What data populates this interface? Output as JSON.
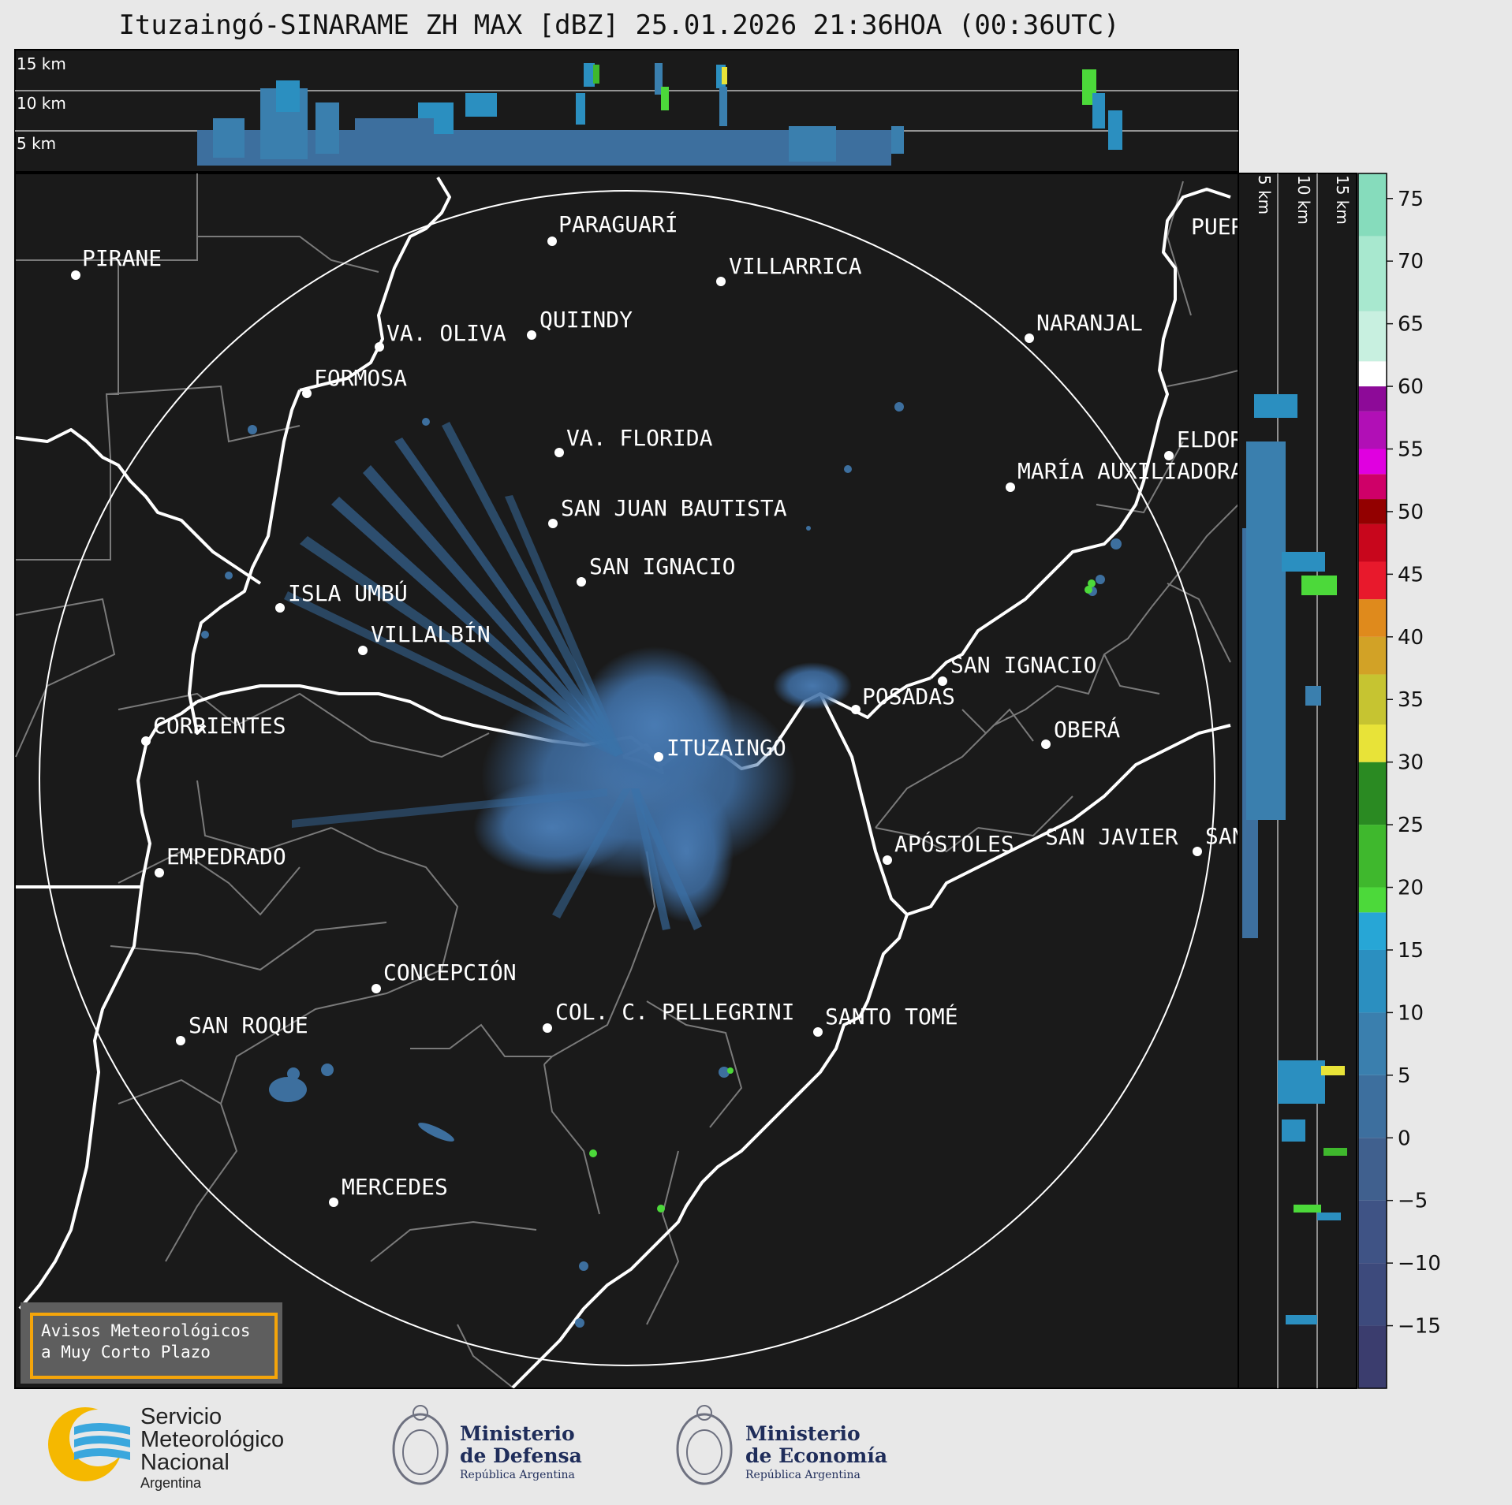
{
  "title": "Ituzaingó-SINARAME ZH MAX [dBZ] 25.01.2026 21:36HOA (00:36UTC)",
  "side_panel": {
    "height_labels": [
      "15 km",
      "10 km",
      "5 km"
    ]
  },
  "right_panel": {
    "height_labels": [
      "5 km",
      "10 km",
      "15 km"
    ]
  },
  "colorbar": {
    "unit": "dBZ",
    "ticks": [
      "75",
      "70",
      "65",
      "60",
      "55",
      "50",
      "45",
      "40",
      "35",
      "30",
      "25",
      "20",
      "15",
      "10",
      "5",
      "0",
      "−5",
      "−10",
      "−15"
    ],
    "tick_values": [
      75,
      70,
      65,
      60,
      55,
      50,
      45,
      40,
      35,
      30,
      25,
      20,
      15,
      10,
      5,
      0,
      -5,
      -10,
      -15
    ],
    "range": [
      -20,
      77
    ],
    "segments": [
      {
        "from": -20,
        "to": -15,
        "color": "#3b3d6e"
      },
      {
        "from": -15,
        "to": -10,
        "color": "#3d4a7c"
      },
      {
        "from": -10,
        "to": -5,
        "color": "#3f5385"
      },
      {
        "from": -5,
        "to": 0,
        "color": "#40608e"
      },
      {
        "from": 0,
        "to": 5,
        "color": "#3d6f9e"
      },
      {
        "from": 5,
        "to": 10,
        "color": "#3a7fae"
      },
      {
        "from": 10,
        "to": 15,
        "color": "#2b8fc0"
      },
      {
        "from": 15,
        "to": 18,
        "color": "#27a6d6"
      },
      {
        "from": 18,
        "to": 20,
        "color": "#4cd93a"
      },
      {
        "from": 20,
        "to": 25,
        "color": "#3fb82d"
      },
      {
        "from": 25,
        "to": 30,
        "color": "#2a8a22"
      },
      {
        "from": 30,
        "to": 33,
        "color": "#e8e338"
      },
      {
        "from": 33,
        "to": 37,
        "color": "#c6c431"
      },
      {
        "from": 37,
        "to": 40,
        "color": "#d2a226"
      },
      {
        "from": 40,
        "to": 43,
        "color": "#df8a1c"
      },
      {
        "from": 43,
        "to": 46,
        "color": "#e8192c"
      },
      {
        "from": 46,
        "to": 49,
        "color": "#c8061c"
      },
      {
        "from": 49,
        "to": 51,
        "color": "#930000"
      },
      {
        "from": 51,
        "to": 53,
        "color": "#cf0068"
      },
      {
        "from": 53,
        "to": 55,
        "color": "#e000e0"
      },
      {
        "from": 55,
        "to": 58,
        "color": "#b10fb6"
      },
      {
        "from": 58,
        "to": 60,
        "color": "#8d0a98"
      },
      {
        "from": 60,
        "to": 62,
        "color": "#ffffff"
      },
      {
        "from": 62,
        "to": 66,
        "color": "#c8f0e0"
      },
      {
        "from": 66,
        "to": 72,
        "color": "#a8e8cf"
      },
      {
        "from": 72,
        "to": 77,
        "color": "#86dcbc"
      }
    ]
  },
  "map": {
    "radar_site": "ITUZAINGÓ",
    "cities": [
      {
        "name": "PARAGUARÍ"
      },
      {
        "name": "VILLARRICA"
      },
      {
        "name": "PIRANE"
      },
      {
        "name": "QUIINDY"
      },
      {
        "name": "VA. OLIVA"
      },
      {
        "name": "NARANJAL"
      },
      {
        "name": "FORMOSA"
      },
      {
        "name": "VA. FLORIDA"
      },
      {
        "name": "ELDORADO"
      },
      {
        "name": "MARÍA AUXILIADORA"
      },
      {
        "name": "SAN JUAN BAUTISTA"
      },
      {
        "name": "SAN IGNACIO"
      },
      {
        "name": "ISLA UMBÚ"
      },
      {
        "name": "VILLALBÍN"
      },
      {
        "name": "SAN IGNACIO"
      },
      {
        "name": "POSADAS"
      },
      {
        "name": "CORRIENTES"
      },
      {
        "name": "ITUZAINGÓ"
      },
      {
        "name": "OBERÁ"
      },
      {
        "name": "EMPEDRADO"
      },
      {
        "name": "APÓSTOLES"
      },
      {
        "name": "SAN JAVIER"
      },
      {
        "name": "SAN"
      },
      {
        "name": "CONCEPCIÓN"
      },
      {
        "name": "COL. C. PELLEGRINI"
      },
      {
        "name": "SANTO TOMÉ"
      },
      {
        "name": "SAN ROQUE"
      },
      {
        "name": "MERCEDES"
      },
      {
        "name": "PUERTO"
      }
    ]
  },
  "avisos": {
    "line1": "Avisos Meteorológicos",
    "line2": "a Muy Corto Plazo"
  },
  "logos": {
    "smn": {
      "line1": "Servicio",
      "line2": "Meteorológico",
      "line3": "Nacional",
      "line4": "Argentina"
    },
    "defensa": {
      "line1": "Ministerio",
      "line2": "de Defensa",
      "line3": "República Argentina"
    },
    "economia": {
      "line1": "Ministerio",
      "line2": "de Economía",
      "line3": "República Argentina"
    }
  },
  "colors": {
    "map_bg": "#1a1a1a",
    "river": "#ffffff",
    "boundary": "#7a7a7a",
    "echo_main": "#3f72a6",
    "accent_orange": "#f5a50a"
  }
}
